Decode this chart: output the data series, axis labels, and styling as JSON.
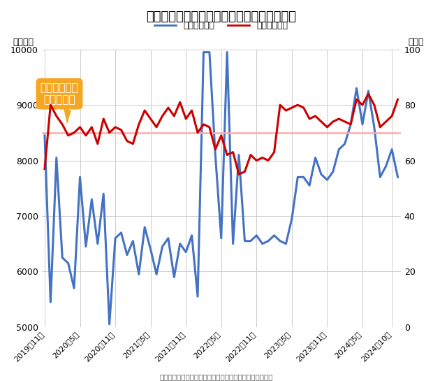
{
  "title": "首都圏の新築マンション価格と契約率の推移",
  "ylabel_left": "（万円）",
  "ylabel_right": "（％）",
  "ylim_left": [
    5000,
    10000
  ],
  "ylim_right": [
    0,
    100
  ],
  "yticks_left": [
    5000,
    6000,
    7000,
    8000,
    9000,
    10000
  ],
  "yticks_right": [
    0,
    20,
    40,
    60,
    80,
    100
  ],
  "reference_line_pct": 70,
  "legend_price": "価格（万円）",
  "legend_rate": "契約率（％）",
  "annotation_line1": "好不調ライン",
  "annotation_line2": "（７０％）",
  "background_color": "#ffffff",
  "grid_color": "#cccccc",
  "price_color": "#4472c4",
  "rate_color": "#cc0000",
  "ref_line_color": "#ffaaaa",
  "annotation_bg": "#f5a623",
  "x_labels": [
    "2019年11月",
    "2020年5月",
    "2020年11月",
    "2021年5月",
    "2021年11月",
    "2022年5月",
    "2022年11月",
    "2023年5月",
    "2023年11月",
    "2024年5月",
    "2024年10月"
  ],
  "xtick_positions": [
    0,
    6,
    12,
    18,
    24,
    30,
    36,
    42,
    48,
    54,
    59
  ],
  "price_data": [
    8450,
    5450,
    8050,
    6250,
    6150,
    5700,
    7700,
    6450,
    7300,
    6500,
    7400,
    5050,
    6600,
    6700,
    6300,
    6550,
    5950,
    6800,
    6400,
    5950,
    6450,
    6600,
    5900,
    6500,
    6350,
    6650,
    5550,
    9950,
    9950,
    8100,
    6600,
    9950,
    6500,
    8100,
    6550,
    6550,
    6650,
    6500,
    6550,
    6650,
    6550,
    6500,
    6950,
    7700,
    7700,
    7550,
    8050,
    7750,
    7650,
    7800,
    8200,
    8300,
    8650,
    9300,
    8650,
    9250,
    8600,
    7700,
    7900,
    8200,
    7700
  ],
  "rate_data": [
    57,
    80,
    76,
    73,
    69,
    70,
    72,
    69,
    72,
    66,
    75,
    70,
    72,
    71,
    67,
    66,
    73,
    78,
    75,
    72,
    76,
    79,
    76,
    81,
    75,
    78,
    70,
    73,
    72,
    64,
    69,
    62,
    63,
    55,
    56,
    62,
    60,
    61,
    60,
    63,
    80,
    78,
    79,
    80,
    79,
    75,
    76,
    74,
    72,
    74,
    75,
    74,
    73,
    82,
    80,
    84,
    80,
    72,
    74,
    76,
    82
  ]
}
